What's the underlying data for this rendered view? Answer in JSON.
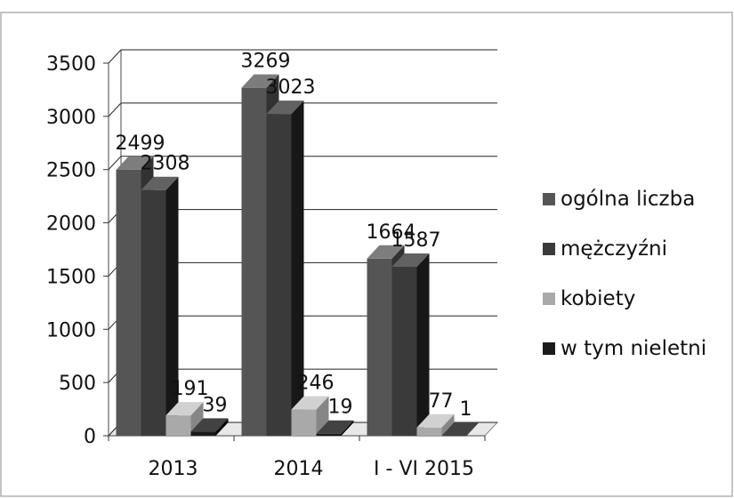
{
  "chart_data": {
    "type": "bar",
    "categories": [
      "2013",
      "2014",
      "I - VI 2015"
    ],
    "series": [
      {
        "name": "ogólna liczba",
        "values": [
          2499,
          3269,
          1664
        ],
        "color": "#555555"
      },
      {
        "name": "mężczyźni",
        "values": [
          2308,
          3023,
          1587
        ],
        "color": "#3a3a3a"
      },
      {
        "name": "kobiety",
        "values": [
          191,
          246,
          77
        ],
        "color": "#a9a9a9"
      },
      {
        "name": "w tym nieletni",
        "values": [
          39,
          19,
          1
        ],
        "color": "#1a1a1a"
      }
    ],
    "ylim": [
      0,
      3500
    ],
    "yticks": [
      0,
      500,
      1000,
      1500,
      2000,
      2500,
      3000,
      3500
    ],
    "grid": true,
    "legend": "right",
    "title": "",
    "xlabel": "",
    "ylabel": ""
  }
}
